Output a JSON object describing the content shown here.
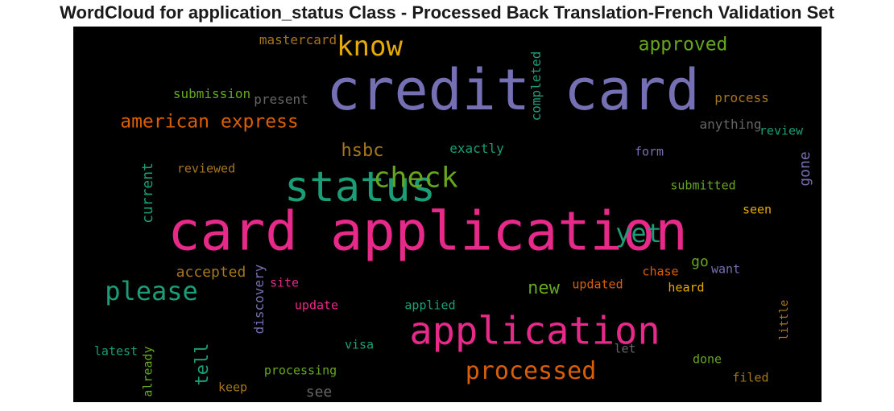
{
  "chart_data": {
    "type": "wordcloud",
    "title": "WordCloud for application_status Class - Processed Back Translation-French Validation Set",
    "background": "#000000",
    "words": [
      {
        "text": "credit card",
        "weight": 100,
        "color": "#7570b3",
        "orient": "h"
      },
      {
        "text": "card application",
        "weight": 95,
        "color": "#e7298a",
        "orient": "h"
      },
      {
        "text": "status",
        "weight": 70,
        "color": "#1b9e77",
        "orient": "h"
      },
      {
        "text": "application",
        "weight": 65,
        "color": "#e7298a",
        "orient": "h"
      },
      {
        "text": "check",
        "weight": 50,
        "color": "#66a61e",
        "orient": "h"
      },
      {
        "text": "know",
        "weight": 48,
        "color": "#e6ab02",
        "orient": "h"
      },
      {
        "text": "please",
        "weight": 45,
        "color": "#1b9e77",
        "orient": "h"
      },
      {
        "text": "yet",
        "weight": 44,
        "color": "#1b9e77",
        "orient": "h"
      },
      {
        "text": "processed",
        "weight": 40,
        "color": "#d95f02",
        "orient": "h"
      },
      {
        "text": "american express",
        "weight": 33,
        "color": "#d95f02",
        "orient": "h"
      },
      {
        "text": "approved",
        "weight": 32,
        "color": "#66a61e",
        "orient": "h"
      },
      {
        "text": "hsbc",
        "weight": 31,
        "color": "#a6761d",
        "orient": "h"
      },
      {
        "text": "tell",
        "weight": 30,
        "color": "#1b9e77",
        "orient": "v"
      },
      {
        "text": "new",
        "weight": 29,
        "color": "#66a61e",
        "orient": "h"
      },
      {
        "text": "current",
        "weight": 26,
        "color": "#1b9e77",
        "orient": "v"
      },
      {
        "text": "accepted",
        "weight": 26,
        "color": "#a6761d",
        "orient": "h"
      },
      {
        "text": "gone",
        "weight": 24,
        "color": "#7570b3",
        "orient": "v"
      },
      {
        "text": "completed",
        "weight": 22,
        "color": "#1b9e77",
        "orient": "v"
      },
      {
        "text": "see",
        "weight": 22,
        "color": "#666666",
        "orient": "h"
      },
      {
        "text": "go",
        "weight": 21,
        "color": "#66a61e",
        "orient": "h"
      },
      {
        "text": "discovery",
        "weight": 20,
        "color": "#7570b3",
        "orient": "v"
      },
      {
        "text": "process",
        "weight": 19,
        "color": "#a6761d",
        "orient": "h"
      },
      {
        "text": "submission",
        "weight": 19,
        "color": "#66a61e",
        "orient": "h"
      },
      {
        "text": "mastercard",
        "weight": 19,
        "color": "#a6761d",
        "orient": "h"
      },
      {
        "text": "present",
        "weight": 19,
        "color": "#666666",
        "orient": "h"
      },
      {
        "text": "anything",
        "weight": 19,
        "color": "#666666",
        "orient": "h"
      },
      {
        "text": "review",
        "weight": 18,
        "color": "#1b9e77",
        "orient": "h"
      },
      {
        "text": "exactly",
        "weight": 18,
        "color": "#1b9e77",
        "orient": "h"
      },
      {
        "text": "form",
        "weight": 18,
        "color": "#7570b3",
        "orient": "h"
      },
      {
        "text": "reviewed",
        "weight": 18,
        "color": "#a6761d",
        "orient": "h"
      },
      {
        "text": "submitted",
        "weight": 18,
        "color": "#66a61e",
        "orient": "h"
      },
      {
        "text": "seen",
        "weight": 18,
        "color": "#e6ab02",
        "orient": "h"
      },
      {
        "text": "want",
        "weight": 18,
        "color": "#7570b3",
        "orient": "h"
      },
      {
        "text": "chase",
        "weight": 18,
        "color": "#d95f02",
        "orient": "h"
      },
      {
        "text": "heard",
        "weight": 18,
        "color": "#e6ab02",
        "orient": "h"
      },
      {
        "text": "site",
        "weight": 18,
        "color": "#e7298a",
        "orient": "h"
      },
      {
        "text": "updated",
        "weight": 18,
        "color": "#d95f02",
        "orient": "h"
      },
      {
        "text": "update",
        "weight": 18,
        "color": "#e7298a",
        "orient": "h"
      },
      {
        "text": "applied",
        "weight": 18,
        "color": "#1b9e77",
        "orient": "h"
      },
      {
        "text": "latest",
        "weight": 18,
        "color": "#1b9e77",
        "orient": "h"
      },
      {
        "text": "already",
        "weight": 18,
        "color": "#66a61e",
        "orient": "v"
      },
      {
        "text": "visa",
        "weight": 18,
        "color": "#1b9e77",
        "orient": "h"
      },
      {
        "text": "let",
        "weight": 18,
        "color": "#666666",
        "orient": "h"
      },
      {
        "text": "done",
        "weight": 18,
        "color": "#66a61e",
        "orient": "h"
      },
      {
        "text": "little",
        "weight": 18,
        "color": "#a6761d",
        "orient": "v"
      },
      {
        "text": "processing",
        "weight": 18,
        "color": "#66a61e",
        "orient": "h"
      },
      {
        "text": "keep",
        "weight": 18,
        "color": "#a6761d",
        "orient": "h"
      },
      {
        "text": "filed",
        "weight": 18,
        "color": "#a6761d",
        "orient": "h"
      }
    ]
  }
}
